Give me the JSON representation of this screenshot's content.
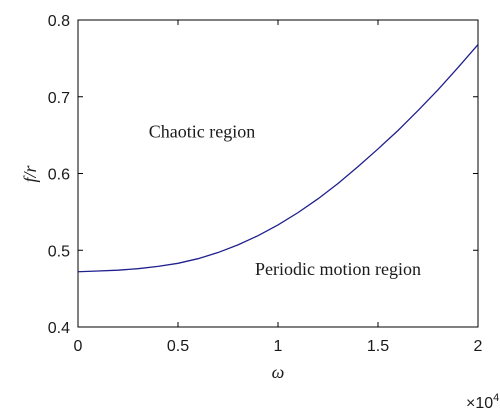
{
  "chart_data": {
    "type": "line",
    "title": "",
    "xlabel": "ω",
    "ylabel": "f/r",
    "xlim": [
      0,
      2
    ],
    "ylim": [
      0.4,
      0.8
    ],
    "x_scale_factor": {
      "base": "×10",
      "exponent": "4"
    },
    "x_ticks": [
      "0",
      "0.5",
      "1",
      "1.5",
      "2"
    ],
    "y_ticks": [
      "0.4",
      "0.5",
      "0.6",
      "0.7",
      "0.8"
    ],
    "grid": false,
    "series_color": "#1f1f8f",
    "series": [
      {
        "x": [
          0,
          0.1,
          0.2,
          0.3,
          0.4,
          0.5,
          0.6,
          0.7,
          0.8,
          0.9,
          1.0,
          1.1,
          1.2,
          1.3,
          1.4,
          1.5,
          1.6,
          1.7,
          1.8,
          1.9,
          2.0
        ],
        "values": [
          0.472,
          0.473,
          0.474,
          0.476,
          0.479,
          0.483,
          0.489,
          0.497,
          0.507,
          0.519,
          0.533,
          0.549,
          0.567,
          0.587,
          0.609,
          0.632,
          0.656,
          0.682,
          0.709,
          0.738,
          0.768
        ]
      }
    ],
    "annotations": [
      {
        "text": "Chaotic region",
        "x": 0.62,
        "y": 0.647
      },
      {
        "text": "Periodic motion region",
        "x": 1.3,
        "y": 0.468
      }
    ]
  }
}
